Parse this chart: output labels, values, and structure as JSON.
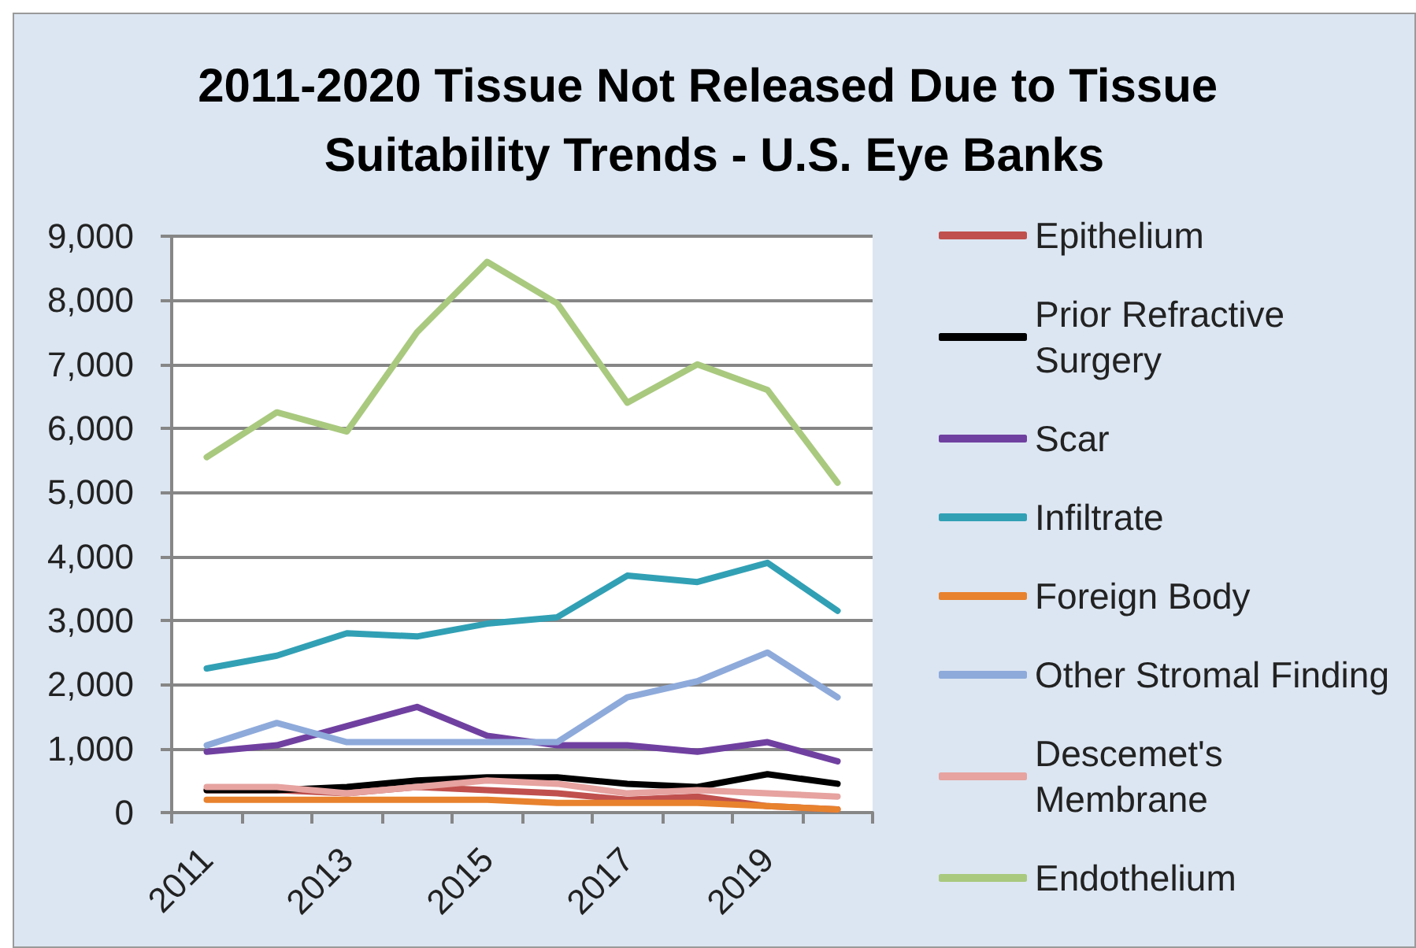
{
  "chart_data": {
    "type": "line",
    "title": "2011-2020 Tissue Not Released Due to Tissue Suitability Trends - U.S. Eye Banks",
    "categories": [
      "2011",
      null,
      "2013",
      null,
      "2015",
      null,
      "2017",
      null,
      "2019",
      null
    ],
    "series": [
      {
        "name": "Epithelium",
        "color": "#c0504d",
        "values": [
          350,
          350,
          300,
          400,
          350,
          300,
          200,
          250,
          100,
          50
        ]
      },
      {
        "name": "Prior Refractive Surgery",
        "color": "#000000",
        "values": [
          350,
          350,
          400,
          500,
          550,
          550,
          450,
          400,
          600,
          450
        ]
      },
      {
        "name": "Scar",
        "color": "#7040a0",
        "values": [
          950,
          1050,
          1350,
          1650,
          1200,
          1050,
          1050,
          950,
          1100,
          800
        ]
      },
      {
        "name": "Infiltrate",
        "color": "#31a0b5",
        "values": [
          2250,
          2450,
          2800,
          2750,
          2950,
          3050,
          3700,
          3600,
          3900,
          3150
        ]
      },
      {
        "name": "Foreign Body",
        "color": "#e8822e",
        "values": [
          200,
          200,
          200,
          200,
          200,
          150,
          150,
          150,
          100,
          50
        ]
      },
      {
        "name": "Other Stromal Finding",
        "color": "#8eaadb",
        "values": [
          1050,
          1400,
          1100,
          1100,
          1100,
          1100,
          1800,
          2050,
          2500,
          1800
        ]
      },
      {
        "name": "Descemet's Membrane",
        "color": "#e6a3a0",
        "values": [
          400,
          400,
          300,
          400,
          500,
          450,
          300,
          350,
          300,
          250
        ]
      },
      {
        "name": "Endothelium",
        "color": "#a9c97f",
        "values": [
          5550,
          6250,
          5950,
          7500,
          8600,
          7950,
          6400,
          7000,
          6600,
          5150
        ]
      }
    ],
    "ylim": [
      0,
      9000
    ],
    "yticks": [
      0,
      {
        "value": 1000,
        "label": "1,000"
      },
      {
        "value": 2000,
        "label": "2,000"
      },
      {
        "value": 3000,
        "label": "3,000"
      },
      {
        "value": 4000,
        "label": "4,000"
      },
      {
        "value": 5000,
        "label": "5,000"
      },
      {
        "value": 6000,
        "label": "6,000"
      },
      {
        "value": 7000,
        "label": "7,000"
      },
      {
        "value": 8000,
        "label": "8,000"
      },
      {
        "value": 9000,
        "label": "9,000"
      }
    ],
    "grid": "y",
    "legend": "right",
    "marker": "none",
    "line_style": "solid"
  }
}
